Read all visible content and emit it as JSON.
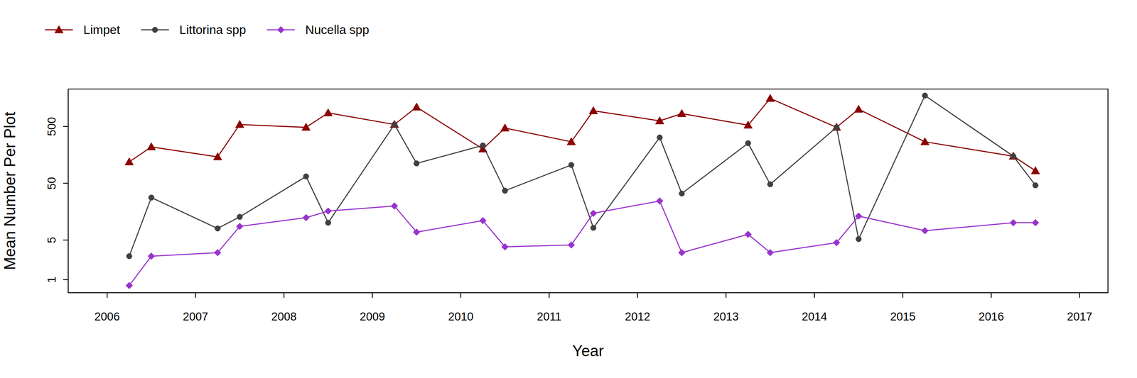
{
  "chart_data": {
    "type": "line",
    "x_label": "Year",
    "y_label": "Mean Number Per Plot",
    "log": "y",
    "legend": "top",
    "x": [
      2006.25,
      2006.5,
      2007.25,
      2007.5,
      2008.25,
      2008.5,
      2009.25,
      2009.5,
      2010.25,
      2010.5,
      2011.25,
      2011.5,
      2012.25,
      2012.5,
      2013.25,
      2013.5,
      2014.25,
      2014.5,
      2015.25,
      2016.25,
      2016.5
    ],
    "xlim": [
      2005.56,
      2017.32
    ],
    "xticks": [
      2006,
      2007,
      2008,
      2009,
      2010,
      2011,
      2012,
      2013,
      2014,
      2015,
      2016,
      2017
    ],
    "ylim": [
      0.59,
      2286
    ],
    "yticks": [
      1,
      5,
      50,
      500
    ],
    "series": [
      {
        "name": "Limpet",
        "color": "#8b0000",
        "marker": "triangle",
        "values": [
          119,
          219,
          146,
          543,
          484,
          869,
          543,
          1099,
          201,
          470,
          269,
          948,
          629,
          843,
          528,
          1560,
          484,
          1006,
          269,
          150,
          83
        ]
      },
      {
        "name": "Littorina spp",
        "color": "#404040",
        "marker": "circle",
        "values": [
          2.6,
          28,
          8.0,
          12.8,
          66,
          10.1,
          543,
          112,
          232,
          37,
          105,
          8.2,
          321,
          33,
          254,
          48,
          484,
          5.2,
          1755,
          150,
          46
        ]
      },
      {
        "name": "Nucella spp",
        "color": "#9932cc",
        "marker": "diamond",
        "values": [
          0.79,
          2.6,
          3.0,
          8.7,
          12.4,
          16.2,
          19.9,
          6.9,
          11.0,
          3.8,
          4.1,
          14.8,
          24.4,
          3.0,
          6.3,
          3.0,
          4.5,
          13.2,
          7.3,
          10.1,
          10.1
        ]
      }
    ]
  }
}
